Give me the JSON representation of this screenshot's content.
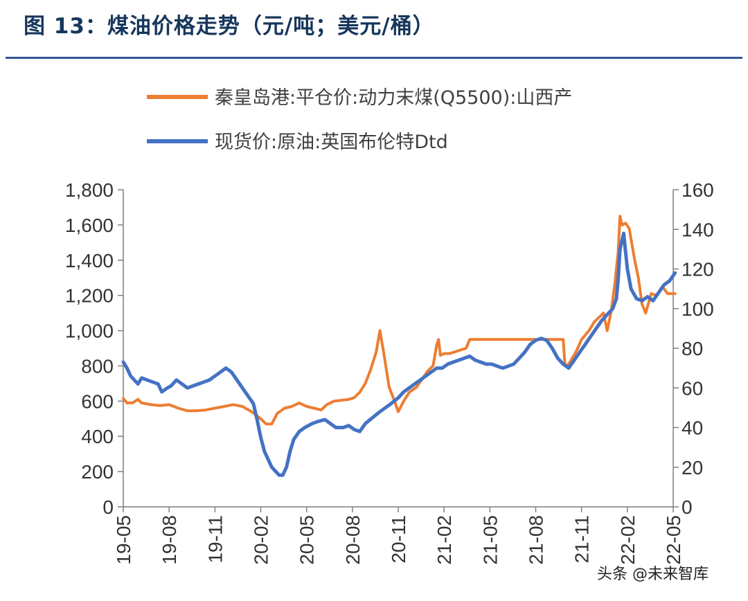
{
  "title": "图 13：煤油价格走势（元/吨；美元/桶）",
  "watermark": "头条 @未来智库",
  "colors": {
    "coal": "#ed7d31",
    "oil": "#4472c4",
    "title": "#16365c",
    "rule": "#2f5597"
  },
  "chart_data": {
    "type": "line",
    "grid": false,
    "legend_position": "top",
    "x_labels": [
      "19-05",
      "19-08",
      "19-11",
      "20-02",
      "20-05",
      "20-08",
      "20-11",
      "21-02",
      "21-05",
      "21-08",
      "21-11",
      "22-02",
      "22-05"
    ],
    "y_left": {
      "min": 0,
      "max": 1800,
      "ticks": [
        "0",
        "200",
        "400",
        "600",
        "800",
        "1,000",
        "1,200",
        "1,400",
        "1,600",
        "1,800"
      ]
    },
    "y_right": {
      "min": 0,
      "max": 160,
      "ticks": [
        "0",
        "20",
        "40",
        "60",
        "80",
        "100",
        "120",
        "140",
        "160"
      ]
    },
    "series": [
      {
        "name": "秦皇岛港:平仓价:动力末煤(Q5500):山西产",
        "axis": "left",
        "points": [
          [
            0,
            615
          ],
          [
            0.2,
            590
          ],
          [
            0.5,
            590
          ],
          [
            0.8,
            610
          ],
          [
            1.0,
            590
          ],
          [
            1.5,
            580
          ],
          [
            2.0,
            575
          ],
          [
            2.5,
            580
          ],
          [
            3.0,
            560
          ],
          [
            3.5,
            545
          ],
          [
            4.0,
            545
          ],
          [
            4.5,
            550
          ],
          [
            5.0,
            560
          ],
          [
            5.5,
            570
          ],
          [
            6.0,
            580
          ],
          [
            6.5,
            570
          ],
          [
            7.0,
            540
          ],
          [
            7.5,
            500
          ],
          [
            7.8,
            470
          ],
          [
            8.1,
            470
          ],
          [
            8.4,
            530
          ],
          [
            8.8,
            560
          ],
          [
            9.2,
            570
          ],
          [
            9.6,
            590
          ],
          [
            10.0,
            570
          ],
          [
            10.4,
            560
          ],
          [
            10.8,
            550
          ],
          [
            11.1,
            580
          ],
          [
            11.5,
            600
          ],
          [
            11.9,
            605
          ],
          [
            12.3,
            610
          ],
          [
            12.6,
            620
          ],
          [
            12.9,
            650
          ],
          [
            13.2,
            700
          ],
          [
            13.5,
            780
          ],
          [
            13.8,
            880
          ],
          [
            14.0,
            1000
          ],
          [
            14.2,
            880
          ],
          [
            14.5,
            680
          ],
          [
            14.8,
            600
          ],
          [
            15.0,
            540
          ],
          [
            15.3,
            600
          ],
          [
            15.6,
            650
          ],
          [
            16.0,
            680
          ],
          [
            16.6,
            770
          ],
          [
            16.9,
            800
          ],
          [
            17.1,
            920
          ],
          [
            17.2,
            950
          ],
          [
            17.3,
            860
          ],
          [
            17.5,
            870
          ],
          [
            17.8,
            870
          ],
          [
            18.1,
            880
          ],
          [
            18.4,
            890
          ],
          [
            18.7,
            900
          ],
          [
            18.9,
            950
          ],
          [
            20.0,
            950
          ],
          [
            21.0,
            950
          ],
          [
            22.0,
            950
          ],
          [
            23.0,
            950
          ],
          [
            23.5,
            950
          ],
          [
            24.0,
            950
          ],
          [
            24.1,
            800
          ],
          [
            24.3,
            810
          ],
          [
            24.7,
            880
          ],
          [
            25.0,
            950
          ],
          [
            25.4,
            1000
          ],
          [
            25.7,
            1050
          ],
          [
            26.0,
            1080
          ],
          [
            26.2,
            1100
          ],
          [
            26.4,
            1000
          ],
          [
            26.6,
            1100
          ],
          [
            26.8,
            1250
          ],
          [
            27.0,
            1450
          ],
          [
            27.1,
            1650
          ],
          [
            27.2,
            1600
          ],
          [
            27.4,
            1610
          ],
          [
            27.6,
            1580
          ],
          [
            27.9,
            1400
          ],
          [
            28.1,
            1300
          ],
          [
            28.3,
            1150
          ],
          [
            28.5,
            1100
          ],
          [
            28.8,
            1210
          ],
          [
            29.1,
            1200
          ],
          [
            29.4,
            1250
          ],
          [
            29.7,
            1210
          ],
          [
            30.1,
            1210
          ]
        ]
      },
      {
        "name": "现货价:原油:英国布伦特Dtd",
        "axis": "right",
        "points": [
          [
            0,
            73
          ],
          [
            0.2,
            70
          ],
          [
            0.4,
            66
          ],
          [
            0.6,
            64
          ],
          [
            0.8,
            62
          ],
          [
            1.0,
            65
          ],
          [
            1.3,
            64
          ],
          [
            1.6,
            63
          ],
          [
            1.9,
            62
          ],
          [
            2.1,
            58
          ],
          [
            2.4,
            60
          ],
          [
            2.6,
            61
          ],
          [
            2.9,
            64
          ],
          [
            3.2,
            62
          ],
          [
            3.5,
            60
          ],
          [
            3.8,
            61
          ],
          [
            4.1,
            62
          ],
          [
            4.4,
            63
          ],
          [
            4.7,
            64
          ],
          [
            5.0,
            66
          ],
          [
            5.3,
            68
          ],
          [
            5.6,
            70
          ],
          [
            5.9,
            68
          ],
          [
            6.2,
            64
          ],
          [
            6.5,
            60
          ],
          [
            6.8,
            56
          ],
          [
            7.1,
            52
          ],
          [
            7.3,
            44
          ],
          [
            7.5,
            35
          ],
          [
            7.7,
            28
          ],
          [
            7.9,
            24
          ],
          [
            8.1,
            20
          ],
          [
            8.3,
            18
          ],
          [
            8.5,
            16
          ],
          [
            8.7,
            16
          ],
          [
            8.9,
            20
          ],
          [
            9.1,
            28
          ],
          [
            9.3,
            34
          ],
          [
            9.6,
            38
          ],
          [
            9.9,
            40
          ],
          [
            10.3,
            42
          ],
          [
            10.6,
            43
          ],
          [
            11.0,
            44
          ],
          [
            11.3,
            42
          ],
          [
            11.6,
            40
          ],
          [
            12.0,
            40
          ],
          [
            12.3,
            41
          ],
          [
            12.6,
            39
          ],
          [
            12.9,
            38
          ],
          [
            13.2,
            42
          ],
          [
            13.6,
            45
          ],
          [
            14.0,
            48
          ],
          [
            14.3,
            50
          ],
          [
            14.6,
            52
          ],
          [
            15.0,
            55
          ],
          [
            15.3,
            58
          ],
          [
            15.6,
            60
          ],
          [
            15.9,
            62
          ],
          [
            16.2,
            64
          ],
          [
            16.5,
            66
          ],
          [
            16.8,
            68
          ],
          [
            17.1,
            70
          ],
          [
            17.4,
            70
          ],
          [
            17.7,
            72
          ],
          [
            18.0,
            73
          ],
          [
            18.3,
            74
          ],
          [
            18.6,
            75
          ],
          [
            18.9,
            76
          ],
          [
            19.2,
            74
          ],
          [
            19.5,
            73
          ],
          [
            19.8,
            72
          ],
          [
            20.1,
            72
          ],
          [
            20.4,
            71
          ],
          [
            20.7,
            70
          ],
          [
            21.0,
            71
          ],
          [
            21.3,
            72
          ],
          [
            21.6,
            75
          ],
          [
            21.9,
            78
          ],
          [
            22.2,
            82
          ],
          [
            22.5,
            84
          ],
          [
            22.8,
            85
          ],
          [
            23.1,
            84
          ],
          [
            23.4,
            80
          ],
          [
            23.7,
            75
          ],
          [
            24.0,
            72
          ],
          [
            24.3,
            70
          ],
          [
            24.6,
            74
          ],
          [
            24.9,
            78
          ],
          [
            25.2,
            82
          ],
          [
            25.5,
            86
          ],
          [
            25.8,
            90
          ],
          [
            26.1,
            94
          ],
          [
            26.4,
            97
          ],
          [
            26.7,
            100
          ],
          [
            26.9,
            105
          ],
          [
            27.0,
            115
          ],
          [
            27.1,
            130
          ],
          [
            27.3,
            138
          ],
          [
            27.5,
            120
          ],
          [
            27.7,
            110
          ],
          [
            28.0,
            105
          ],
          [
            28.3,
            104
          ],
          [
            28.6,
            106
          ],
          [
            28.9,
            104
          ],
          [
            29.2,
            108
          ],
          [
            29.5,
            112
          ],
          [
            29.8,
            114
          ],
          [
            30.1,
            118
          ]
        ]
      }
    ]
  }
}
